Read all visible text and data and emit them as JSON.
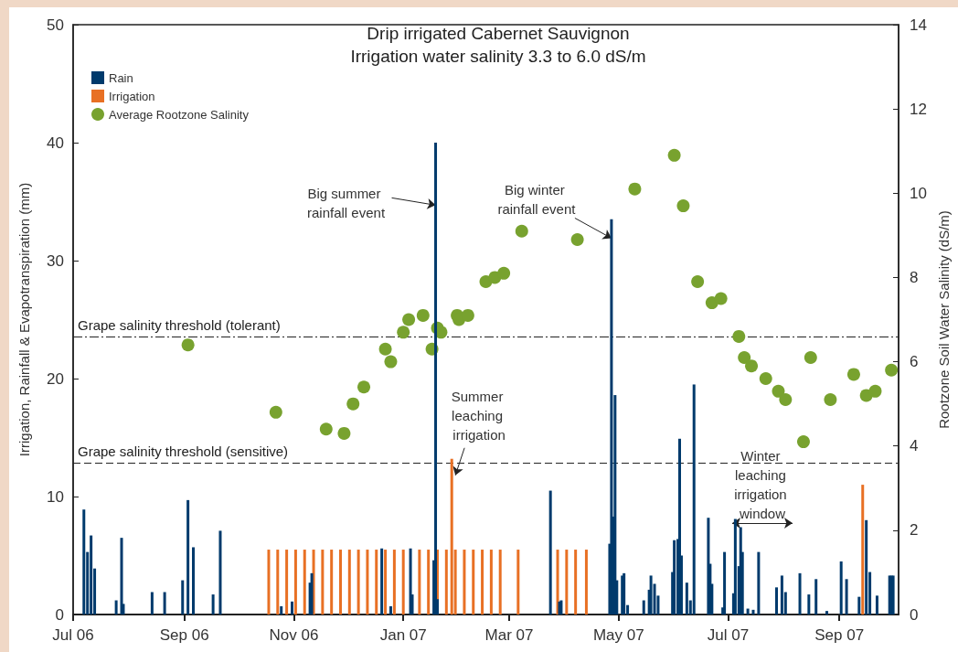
{
  "chart_data": {
    "type": "bar",
    "title": "Drip irrigated Cabernet Sauvignon",
    "subtitle": "Irrigation water salinity 3.3 to 6.0 dS/m",
    "ylabel": "Irrigation, Rainfall & Evapotranspiration (mm)",
    "y2label": "Rootzone Soil Water Salinity (dS/m)",
    "series": [
      {
        "name": "Rain",
        "color": "#003a6c",
        "x": [
          "2006-07-07",
          "2006-07-09",
          "2006-07-11",
          "2006-07-13",
          "2006-07-25",
          "2006-07-28",
          "2006-07-29",
          "2006-08-14",
          "2006-08-21",
          "2006-08-31",
          "2006-09-03",
          "2006-09-06",
          "2006-09-17",
          "2006-09-21",
          "2006-10-25",
          "2006-10-31",
          "2006-11-10",
          "2006-11-11",
          "2006-12-20",
          "2006-12-25",
          "2007-01-05",
          "2007-01-06",
          "2007-01-18",
          "2007-01-19",
          "2007-01-20",
          "2007-03-24",
          "2007-03-29",
          "2007-03-30",
          "2007-04-26",
          "2007-04-27",
          "2007-04-28",
          "2007-04-29",
          "2007-04-30",
          "2007-05-03",
          "2007-05-04",
          "2007-05-06",
          "2007-05-15",
          "2007-05-18",
          "2007-05-19",
          "2007-05-21",
          "2007-05-23",
          "2007-05-31",
          "2007-06-01",
          "2007-06-03",
          "2007-06-04",
          "2007-06-05",
          "2007-06-08",
          "2007-06-10",
          "2007-06-12",
          "2007-06-20",
          "2007-06-21",
          "2007-06-22",
          "2007-06-28",
          "2007-06-29",
          "2007-07-04",
          "2007-07-05",
          "2007-07-07",
          "2007-07-08",
          "2007-07-09",
          "2007-07-12",
          "2007-07-15",
          "2007-07-18",
          "2007-07-28",
          "2007-07-31",
          "2007-08-02",
          "2007-08-10",
          "2007-08-15",
          "2007-08-19",
          "2007-08-25",
          "2007-09-02",
          "2007-09-05",
          "2007-09-12",
          "2007-09-16",
          "2007-09-18",
          "2007-09-22",
          "2007-09-29",
          "2007-09-30",
          "2007-10-01"
        ],
        "values": [
          8.9,
          5.3,
          6.7,
          3.9,
          1.2,
          6.5,
          0.9,
          1.9,
          1.9,
          2.9,
          9.7,
          5.7,
          1.7,
          7.1,
          0.7,
          1.1,
          2.7,
          3.5,
          5.6,
          0.7,
          5.6,
          1.7,
          4.6,
          40,
          1.3,
          10.5,
          1.1,
          1.2,
          6.0,
          33.5,
          8.3,
          18.6,
          2.9,
          3.3,
          3.5,
          0.8,
          1.2,
          2.1,
          3.3,
          2.6,
          1.6,
          3.6,
          6.3,
          6.4,
          14.9,
          5.0,
          2.7,
          1.2,
          19.5,
          8.2,
          4.3,
          2.6,
          0.6,
          5.3,
          1.8,
          8.1,
          4.1,
          7.4,
          5.3,
          0.5,
          0.4,
          5.3,
          2.3,
          3.3,
          1.9,
          3.5,
          1.7,
          3.0,
          0.3,
          4.5,
          3.0,
          1.5,
          8.0,
          3.6,
          1.6,
          3.3,
          3.3,
          3.3
        ]
      },
      {
        "name": "Irrigation",
        "color": "#e87024",
        "x": [
          "2006-10-18",
          "2006-10-23",
          "2006-10-28",
          "2006-11-02",
          "2006-11-07",
          "2006-11-12",
          "2006-11-17",
          "2006-11-22",
          "2006-11-27",
          "2006-12-02",
          "2006-12-07",
          "2006-12-12",
          "2006-12-17",
          "2006-12-22",
          "2006-12-27",
          "2007-01-01",
          "2007-01-10",
          "2007-01-15",
          "2007-01-20",
          "2007-01-25",
          "2007-01-28",
          "2007-01-30",
          "2007-02-04",
          "2007-02-09",
          "2007-02-14",
          "2007-02-19",
          "2007-02-24",
          "2007-03-06",
          "2007-03-28",
          "2007-04-02",
          "2007-04-07",
          "2007-04-13",
          "2007-09-14"
        ],
        "values": [
          5.5,
          5.5,
          5.5,
          5.5,
          5.5,
          5.5,
          5.5,
          5.5,
          5.5,
          5.5,
          5.5,
          5.5,
          5.5,
          5.5,
          5.5,
          5.5,
          5.5,
          5.5,
          5.5,
          5.5,
          13.2,
          5.5,
          5.5,
          5.5,
          5.5,
          5.5,
          5.5,
          5.5,
          5.5,
          5.5,
          5.5,
          5.5,
          11.0
        ]
      },
      {
        "name": "Average Rootzone Salinity",
        "color": "#78a22f",
        "type": "scatter",
        "axis": "y2",
        "x": [
          "2006-09-03",
          "2006-10-22",
          "2006-11-19",
          "2006-11-29",
          "2006-12-04",
          "2006-12-10",
          "2006-12-22",
          "2006-12-25",
          "2007-01-01",
          "2007-01-04",
          "2007-01-12",
          "2007-01-17",
          "2007-01-20",
          "2007-01-22",
          "2007-01-31",
          "2007-02-01",
          "2007-02-06",
          "2007-02-16",
          "2007-02-21",
          "2007-02-26",
          "2007-03-08",
          "2007-04-08",
          "2007-05-10",
          "2007-06-01",
          "2007-06-06",
          "2007-06-14",
          "2007-06-22",
          "2007-06-27",
          "2007-07-07",
          "2007-07-10",
          "2007-07-14",
          "2007-07-22",
          "2007-07-29",
          "2007-08-02",
          "2007-08-12",
          "2007-08-16",
          "2007-08-27",
          "2007-09-09",
          "2007-09-16",
          "2007-09-21",
          "2007-09-30"
        ],
        "values": [
          6.4,
          4.8,
          4.4,
          4.3,
          5.0,
          5.4,
          6.3,
          6.0,
          6.7,
          7.0,
          7.1,
          6.3,
          6.8,
          6.7,
          7.1,
          7.0,
          7.1,
          7.9,
          8.0,
          8.1,
          9.1,
          8.9,
          10.1,
          10.9,
          9.7,
          7.9,
          7.4,
          7.5,
          6.6,
          6.1,
          5.9,
          5.6,
          5.3,
          5.1,
          4.1,
          6.1,
          5.1,
          5.7,
          5.2,
          5.3,
          5.8
        ]
      }
    ],
    "xlim": [
      "2006-07-01",
      "2007-10-04"
    ],
    "xticks": [
      {
        "value": "2006-07-01",
        "label": "Jul 06"
      },
      {
        "value": "2006-09-01",
        "label": "Sep 06"
      },
      {
        "value": "2006-11-01",
        "label": "Nov 06"
      },
      {
        "value": "2007-01-01",
        "label": "Jan 07"
      },
      {
        "value": "2007-03-01",
        "label": "Mar 07"
      },
      {
        "value": "2007-05-01",
        "label": "May 07"
      },
      {
        "value": "2007-07-01",
        "label": "Jul 07"
      },
      {
        "value": "2007-09-01",
        "label": "Sep 07"
      }
    ],
    "ylim": [
      0,
      50
    ],
    "yticks": [
      0,
      10,
      20,
      30,
      40,
      50
    ],
    "y2lim": [
      0,
      14
    ],
    "y2ticks": [
      0,
      2,
      4,
      6,
      8,
      10,
      12,
      14
    ],
    "ref_lines": [
      {
        "axis": "y2",
        "value": 6.6,
        "label": "Grape salinity threshold (tolerant)",
        "line_style": "dashdot"
      },
      {
        "axis": "y2",
        "value": 3.6,
        "label": "Grape salinity threshold (sensitive)",
        "line_style": "dashed"
      }
    ],
    "annotations": [
      {
        "text": "Big summer rainfall event",
        "x": "2007-01-19",
        "y": 34.7
      },
      {
        "text": "Big winter rainfall event",
        "x": "2007-04-27",
        "y": 31.9
      },
      {
        "text": "Summer leaching irrigation",
        "x": "2007-01-30",
        "y": 11.8
      },
      "Winter leaching irrigation window"
    ],
    "marker": "circle",
    "grid": false,
    "legend": "top left"
  }
}
